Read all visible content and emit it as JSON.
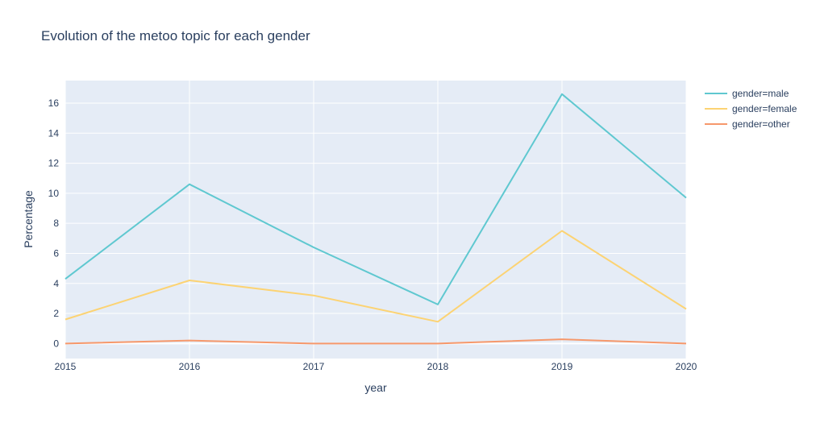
{
  "chart_data": {
    "type": "line",
    "title": "Evolution of the metoo topic for each gender",
    "xlabel": "year",
    "ylabel": "Percentage",
    "x": [
      2015,
      2016,
      2017,
      2018,
      2019,
      2020
    ],
    "xlim": [
      2015,
      2020
    ],
    "ylim": [
      -1,
      17.5
    ],
    "x_ticks": [
      "2015",
      "2016",
      "2017",
      "2018",
      "2019",
      "2020"
    ],
    "y_ticks": [
      0,
      2,
      4,
      6,
      8,
      10,
      12,
      14,
      16
    ],
    "y_tick_labels": [
      "0",
      "2",
      "4",
      "6",
      "8",
      "10",
      "12",
      "14",
      "16"
    ],
    "grid": true,
    "legend_position": "right",
    "plot_background": "#e5ecf6",
    "series": [
      {
        "name": "gender=male",
        "color": "#5fc8d0",
        "values": [
          4.3,
          10.6,
          6.4,
          2.6,
          16.6,
          9.7
        ]
      },
      {
        "name": "gender=female",
        "color": "#fcd373",
        "values": [
          1.6,
          4.2,
          3.2,
          1.45,
          7.5,
          2.3
        ]
      },
      {
        "name": "gender=other",
        "color": "#f6986b",
        "values": [
          0.0,
          0.2,
          0.0,
          0.0,
          0.28,
          0.0
        ]
      }
    ]
  }
}
